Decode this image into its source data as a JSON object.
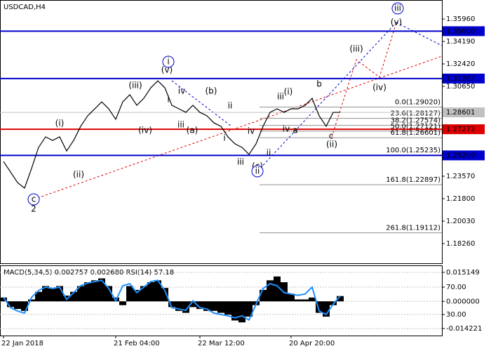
{
  "chart_data": [
    {
      "type": "line",
      "title": "USDCAD,H4",
      "categories": [
        "22 Jan 2018",
        null,
        null,
        null,
        null,
        null,
        null,
        null,
        null,
        null,
        null,
        null,
        null,
        null,
        null,
        null,
        "21 Feb 04:00",
        null,
        null,
        null,
        null,
        null,
        null,
        null,
        null,
        null,
        null,
        null,
        "22 Mar 12:00",
        null,
        null,
        null,
        null,
        null,
        null,
        null,
        null,
        null,
        null,
        null,
        null,
        "20 Apr 20:00",
        null,
        null,
        null,
        null,
        null,
        null,
        null
      ],
      "series": [
        {
          "name": "USDCAD",
          "color": "#000000",
          "values": [
            1.2473,
            1.239,
            1.2307,
            1.2263,
            1.2418,
            1.2584,
            1.2667,
            1.2639,
            1.2667,
            1.2556,
            1.2639,
            1.275,
            1.2833,
            1.2888,
            1.2943,
            1.2888,
            1.2805,
            1.2943,
            1.2999,
            1.2916,
            1.2971,
            1.3054,
            1.3109,
            1.3054,
            1.2916,
            1.2888,
            1.286,
            1.2916,
            1.286,
            1.2833,
            1.2777,
            1.275,
            1.2667,
            1.2612,
            1.2584,
            1.2529,
            1.2612,
            1.275,
            1.286,
            1.2888,
            1.286,
            1.2888,
            1.2888,
            1.2916,
            1.2971,
            1.2833,
            1.275,
            1.286,
            1.286
          ]
        }
      ],
      "ylim": [
        1.1671,
        1.3718
      ],
      "yticks": [
        {
          "value": 1.3596,
          "label": "1.35960"
        },
        {
          "value": 1.3419,
          "label": "1.34190"
        },
        {
          "value": 1.3242,
          "label": "1.32420"
        },
        {
          "value": 1.3065,
          "label": "1.30650"
        },
        {
          "value": 1.2357,
          "label": "1.23570"
        },
        {
          "value": 1.218,
          "label": "1.21800"
        },
        {
          "value": 1.2003,
          "label": "1.20030"
        },
        {
          "value": 1.1826,
          "label": "1.18260"
        }
      ],
      "levels": [
        {
          "value": 1.35,
          "label": "1.35000",
          "color": "#0000cc"
        },
        {
          "value": 1.31267,
          "label": "1.31267",
          "color": "#0000cc"
        },
        {
          "value": 1.28601,
          "label": "1.28601",
          "color": "#c0c0c0"
        },
        {
          "value": 1.27272,
          "label": "1.27272",
          "color": "#dd0000"
        },
        {
          "value": 1.25209,
          "label": "1.25209",
          "color": "#0000cc"
        }
      ],
      "fib_levels": [
        {
          "value": 1.2902,
          "label": "0.0(1.29020)"
        },
        {
          "value": 1.28127,
          "label": "23.6(1.28127)"
        },
        {
          "value": 1.27574,
          "label": "38.2(1.27574)"
        },
        {
          "value": 1.27121,
          "label": "50.0(1.27121)"
        },
        {
          "value": 1.26601,
          "label": "61.8(1.26601)"
        },
        {
          "value": 1.25235,
          "label": "100.0(1.25235)"
        },
        {
          "value": 1.22897,
          "label": "161.8(1.22897)"
        },
        {
          "value": 1.19112,
          "label": "261.8(1.19112)"
        }
      ],
      "wave_labels": [
        {
          "label": "c",
          "color": "#0000cc",
          "circled": true
        },
        {
          "label": "2",
          "color": "#dd0000"
        },
        {
          "label": "(i)",
          "color": "#dd0000"
        },
        {
          "label": "(ii)",
          "color": "#dd0000"
        },
        {
          "label": "(iii)",
          "color": "#dd0000"
        },
        {
          "label": "(iv)",
          "color": "#dd0000"
        },
        {
          "label": "(v)",
          "color": "#dd0000"
        },
        {
          "label": "i",
          "color": "#0000cc",
          "circled": true
        },
        {
          "label": "i",
          "color": "#808080"
        },
        {
          "label": "iv",
          "color": "#808080"
        },
        {
          "label": "iii",
          "color": "#808080"
        },
        {
          "label": "(a)",
          "color": "#dd0000"
        },
        {
          "label": "(b)",
          "color": "#dd0000"
        },
        {
          "label": "ii",
          "color": "#808080"
        },
        {
          "label": "i",
          "color": "#808080"
        },
        {
          "label": "iv",
          "color": "#808080"
        },
        {
          "label": "iii",
          "color": "#808080"
        },
        {
          "label": "(c)",
          "color": "#dd0000"
        },
        {
          "label": "ii",
          "color": "#0000cc",
          "circled": true
        },
        {
          "label": "ii",
          "color": "#808080"
        },
        {
          "label": "iii",
          "color": "#808080"
        },
        {
          "label": "(i)",
          "color": "#dd0000"
        },
        {
          "label": "iv",
          "color": "#808080"
        },
        {
          "label": "a",
          "color": "#808080"
        },
        {
          "label": "b",
          "color": "#808080"
        },
        {
          "label": "c",
          "color": "#808080"
        },
        {
          "label": "(ii)",
          "color": "#dd0000"
        },
        {
          "label": "(iii)",
          "color": "#dd0000"
        },
        {
          "label": "(iv)",
          "color": "#dd0000"
        },
        {
          "label": "(v)",
          "color": "#dd0000"
        },
        {
          "label": "iii",
          "color": "#0000cc",
          "circled": true
        }
      ]
    },
    {
      "type": "bar",
      "title": "MACD(5,34,5) 0.002757 0.002680 RSI(14) 57.18",
      "series": [
        {
          "name": "MACD",
          "color": "#000000",
          "values": [
            0.002,
            -0.003,
            -0.004,
            -0.005,
            0.001,
            0.005,
            0.008,
            0.007,
            0.008,
            0.003,
            0.005,
            0.008,
            0.01,
            0.011,
            0.012,
            0.008,
            0.002,
            -0.002,
            0.008,
            0.006,
            0.008,
            0.01,
            0.011,
            0.007,
            -0.003,
            -0.005,
            -0.006,
            -0.003,
            -0.004,
            -0.005,
            -0.005,
            -0.006,
            -0.007,
            -0.01,
            -0.011,
            -0.008,
            -0.002,
            0.006,
            0.011,
            0.013,
            0.01,
            0.004,
            0.001,
            0.001,
            0.002,
            -0.006,
            -0.008,
            -0.002,
            0.002757
          ]
        },
        {
          "name": "RSI",
          "color": "#1e90ff",
          "axis": "y2",
          "values": [
            55,
            40,
            35,
            32,
            55,
            65,
            70,
            68,
            70,
            52,
            62,
            72,
            76,
            78,
            80,
            68,
            50,
            72,
            75,
            62,
            70,
            78,
            80,
            65,
            40,
            38,
            36,
            50,
            40,
            38,
            32,
            30,
            28,
            25,
            28,
            22,
            45,
            68,
            75,
            72,
            62,
            60,
            58,
            60,
            70,
            35,
            30,
            45,
            57.18
          ]
        }
      ],
      "ylim": [
        -0.01789,
        0.01882
      ],
      "yticks": [
        0.015149,
        {
          "value": 0,
          "label": "0.000000"
        },
        -0.014221
      ],
      "y2lim": [
        -0.8,
        101.8
      ],
      "y2ticks": [
        {
          "value": 70,
          "label": "70.00"
        },
        {
          "value": 30,
          "label": "30.00"
        }
      ]
    }
  ]
}
